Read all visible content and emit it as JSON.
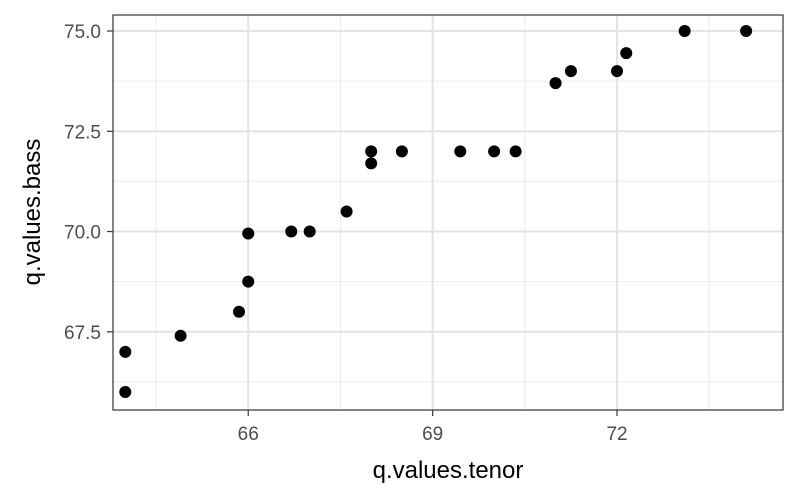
{
  "chart_data": {
    "type": "scatter",
    "title": "",
    "xlabel": "q.values.tenor",
    "ylabel": "q.values.bass",
    "xlim": [
      63.8,
      74.7
    ],
    "ylim": [
      65.55,
      75.4
    ],
    "x_ticks": [
      66,
      69,
      72
    ],
    "x_tick_labels": [
      "66",
      "69",
      "72"
    ],
    "x_minor_ticks": [
      64.5,
      67.5,
      70.5,
      73.5
    ],
    "y_ticks": [
      67.5,
      70.0,
      72.5,
      75.0
    ],
    "y_tick_labels": [
      "67.5",
      "70.0",
      "72.5",
      "75.0"
    ],
    "y_minor_ticks": [
      66.25,
      68.75,
      71.25,
      73.75
    ],
    "grid": true,
    "legend": "none",
    "point_color": "#000000",
    "points": [
      {
        "x": 64.0,
        "y": 66.0
      },
      {
        "x": 64.0,
        "y": 67.0
      },
      {
        "x": 64.9,
        "y": 67.4
      },
      {
        "x": 65.85,
        "y": 68.0
      },
      {
        "x": 66.0,
        "y": 68.75
      },
      {
        "x": 66.0,
        "y": 69.95
      },
      {
        "x": 66.7,
        "y": 70.0
      },
      {
        "x": 67.0,
        "y": 70.0
      },
      {
        "x": 67.6,
        "y": 70.5
      },
      {
        "x": 68.0,
        "y": 71.7
      },
      {
        "x": 68.0,
        "y": 72.0
      },
      {
        "x": 68.5,
        "y": 72.0
      },
      {
        "x": 69.45,
        "y": 72.0
      },
      {
        "x": 70.0,
        "y": 72.0
      },
      {
        "x": 70.35,
        "y": 72.0
      },
      {
        "x": 71.0,
        "y": 73.7
      },
      {
        "x": 71.25,
        "y": 74.0
      },
      {
        "x": 72.0,
        "y": 74.0
      },
      {
        "x": 72.15,
        "y": 74.45
      },
      {
        "x": 73.1,
        "y": 75.0
      },
      {
        "x": 74.1,
        "y": 75.0
      }
    ]
  }
}
